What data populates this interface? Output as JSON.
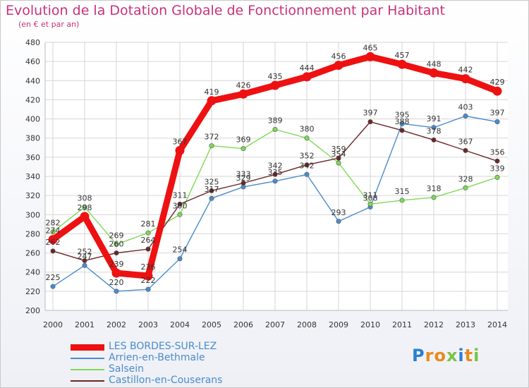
{
  "chart_data": {
    "type": "line",
    "title": "Evolution de la Dotation Globale de Fonctionnement par Habitant",
    "subtitle": "(en € et par an)",
    "x": [
      "2000",
      "2001",
      "2002",
      "2003",
      "2004",
      "2005",
      "2006",
      "2007",
      "2008",
      "2009",
      "2010",
      "2011",
      "2012",
      "2013",
      "2014"
    ],
    "ylim": [
      200,
      480
    ],
    "yticks": [
      200,
      220,
      240,
      260,
      280,
      300,
      320,
      340,
      360,
      380,
      400,
      420,
      440,
      460,
      480
    ],
    "grid": true,
    "legend_position": "bottom-left",
    "series": [
      {
        "name": "LES BORDES-SUR-LEZ",
        "color": "#ee1111",
        "values": [
          274,
          298,
          239,
          236,
          367,
          419,
          426,
          435,
          444,
          456,
          465,
          457,
          448,
          442,
          429
        ]
      },
      {
        "name": "Arrien-en-Bethmale",
        "color": "#4a8ccc",
        "values": [
          225,
          247,
          220,
          222,
          254,
          317,
          329,
          335,
          342,
          293,
          308,
          395,
          391,
          403,
          397
        ]
      },
      {
        "name": "Salsein",
        "color": "#7ed957",
        "values": [
          282,
          308,
          269,
          281,
          300,
          372,
          369,
          389,
          380,
          354,
          311,
          315,
          318,
          328,
          339
        ]
      },
      {
        "name": "Castillon-en-Couserans",
        "color": "#6b2626",
        "values": [
          262,
          252,
          260,
          264,
          311,
          325,
          333,
          342,
          352,
          359,
          397,
          388,
          378,
          367,
          356
        ]
      }
    ]
  },
  "logo": {
    "text": "Proxiti",
    "colors": [
      "#2a7fd0",
      "#e88a1a",
      "#e88a1a",
      "#7cc243",
      "#2a7fd0",
      "#e88a1a",
      "#7cc243"
    ]
  }
}
